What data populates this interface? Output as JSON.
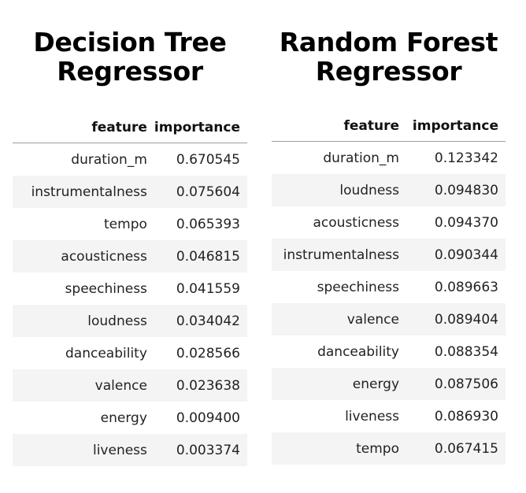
{
  "left": {
    "title_line1": "Decision Tree",
    "title_line2": "Regressor",
    "columns": [
      "feature",
      "importance"
    ],
    "rows": [
      [
        "duration_m",
        "0.670545"
      ],
      [
        "instrumentalness",
        "0.075604"
      ],
      [
        "tempo",
        "0.065393"
      ],
      [
        "acousticness",
        "0.046815"
      ],
      [
        "speechiness",
        "0.041559"
      ],
      [
        "loudness",
        "0.034042"
      ],
      [
        "danceability",
        "0.028566"
      ],
      [
        "valence",
        "0.023638"
      ],
      [
        "energy",
        "0.009400"
      ],
      [
        "liveness",
        "0.003374"
      ]
    ]
  },
  "right": {
    "title_line1": "Random Forest",
    "title_line2": "Regressor",
    "columns": [
      "feature",
      "importance"
    ],
    "rows": [
      [
        "duration_m",
        "0.123342"
      ],
      [
        "loudness",
        "0.094830"
      ],
      [
        "acousticness",
        "0.094370"
      ],
      [
        "instrumentalness",
        "0.090344"
      ],
      [
        "speechiness",
        "0.089663"
      ],
      [
        "valence",
        "0.089404"
      ],
      [
        "danceability",
        "0.088354"
      ],
      [
        "energy",
        "0.087506"
      ],
      [
        "liveness",
        "0.086930"
      ],
      [
        "tempo",
        "0.067415"
      ]
    ]
  }
}
